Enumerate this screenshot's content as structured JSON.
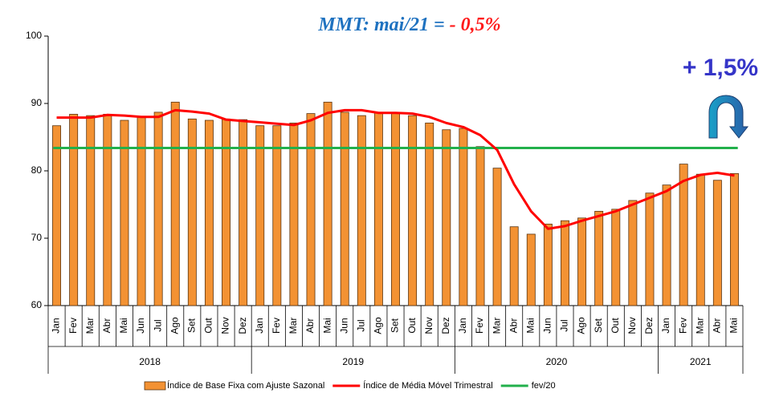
{
  "chart_data": {
    "type": "bar",
    "title": {
      "prefix": "MMT: mai/21 =",
      "highlight": "- 0,5%",
      "color": "#1f72c0",
      "highlight_color": "#ff1a1a"
    },
    "annotation": {
      "text": "+ 1,5%",
      "color": "#3535c8"
    },
    "categories": [
      "Jan",
      "Fev",
      "Mar",
      "Abr",
      "Mai",
      "Jun",
      "Jul",
      "Ago",
      "Set",
      "Out",
      "Nov",
      "Dez",
      "Jan",
      "Fev",
      "Mar",
      "Abr",
      "Mai",
      "Jun",
      "Jul",
      "Ago",
      "Set",
      "Out",
      "Nov",
      "Dez",
      "Jan",
      "Fev",
      "Mar",
      "Abr",
      "Mai",
      "Jun",
      "Jul",
      "Ago",
      "Set",
      "Out",
      "Nov",
      "Dez",
      "Jan",
      "Fev",
      "Mar",
      "Abr",
      "Mai"
    ],
    "category_groups": [
      {
        "label": "2018",
        "size": 12
      },
      {
        "label": "2019",
        "size": 12
      },
      {
        "label": "2020",
        "size": 12
      },
      {
        "label": "2021",
        "size": 5
      }
    ],
    "series": [
      {
        "name": "Índice de Base Fixa com Ajuste Sazonal",
        "kind": "bar",
        "color": "#f39233",
        "values": [
          86.7,
          88.4,
          88.2,
          88.4,
          87.5,
          87.9,
          88.7,
          90.2,
          87.7,
          87.5,
          87.7,
          87.6,
          86.7,
          86.7,
          87.1,
          88.5,
          90.2,
          88.7,
          88.2,
          88.6,
          88.6,
          88.2,
          87.1,
          86.1,
          86.3,
          83.6,
          80.4,
          71.7,
          70.6,
          72.1,
          72.6,
          73.0,
          74.0,
          74.3,
          75.6,
          76.7,
          77.9,
          81.0,
          79.5,
          78.6,
          79.6
        ]
      },
      {
        "name": "Índice de Média Móvel Trimestral",
        "kind": "line",
        "color": "#ff0000",
        "values": [
          87.9,
          87.9,
          87.9,
          88.3,
          88.2,
          88.0,
          88.0,
          89.0,
          88.8,
          88.5,
          87.6,
          87.4,
          87.2,
          87.0,
          86.8,
          87.5,
          88.6,
          89.0,
          89.0,
          88.6,
          88.6,
          88.5,
          88.0,
          87.1,
          86.5,
          85.3,
          83.1,
          78.0,
          74.0,
          71.4,
          71.8,
          72.6,
          73.3,
          74.0,
          75.0,
          76.0,
          77.0,
          78.5,
          79.4,
          79.7,
          79.3
        ]
      }
    ],
    "reference_line": {
      "name": "fev/20",
      "color": "#22b04b",
      "value": 83.4
    },
    "ylim": [
      60,
      100
    ],
    "yticks": [
      60,
      70,
      80,
      90,
      100
    ],
    "grid": false,
    "legend": "bottom"
  }
}
